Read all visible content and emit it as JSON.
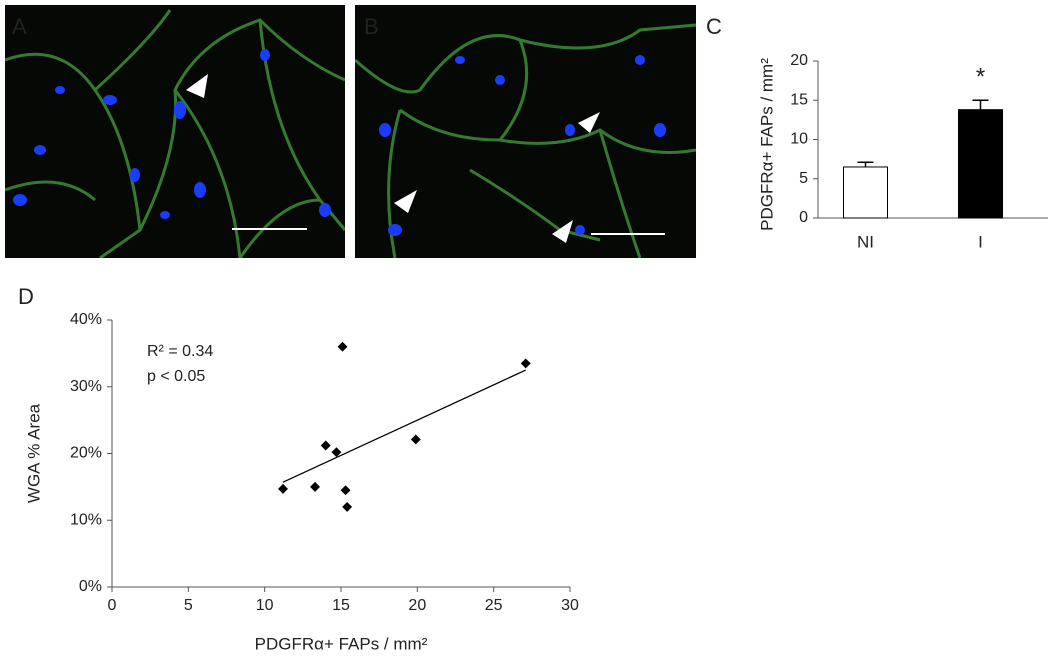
{
  "panel_labels": [
    "A",
    "B",
    "C",
    "D"
  ],
  "chart_data": [
    {
      "type": "bar",
      "y_label": "PDGFRα+ FAPs / mm²",
      "categories": [
        "NI",
        "I"
      ],
      "values": [
        6.5,
        13.8
      ],
      "errors": [
        0.6,
        1.2
      ],
      "colors": [
        "#ffffff",
        "#000000"
      ],
      "annotations": [
        "",
        "*"
      ],
      "ylim": [
        0,
        20
      ],
      "yticks": [
        0,
        5,
        10,
        15,
        20
      ]
    },
    {
      "type": "scatter",
      "x_label": "PDGFRα+ FAPs / mm²",
      "y_label": "WGA % Area",
      "x": [
        11.2,
        13.3,
        14.0,
        14.7,
        15.1,
        15.3,
        15.4,
        19.9,
        27.1
      ],
      "y": [
        14.7,
        15.0,
        21.2,
        20.2,
        36.0,
        14.5,
        12.0,
        22.1,
        33.5
      ],
      "color": "#000000",
      "trendline": {
        "x": [
          11.2,
          27.1
        ],
        "y": [
          15.7,
          32.5
        ]
      },
      "annotations": [
        "R² = 0.34",
        "p < 0.05"
      ],
      "xlim": [
        0,
        30
      ],
      "xticks": [
        0,
        5,
        10,
        15,
        20,
        25,
        30
      ],
      "ylim": [
        0,
        40
      ],
      "yticks": [
        {
          "value": 0,
          "label": "0%"
        },
        {
          "value": 10,
          "label": "10%"
        },
        {
          "value": 20,
          "label": "20%"
        },
        {
          "value": 30,
          "label": "30%"
        },
        {
          "value": 40,
          "label": "40%"
        }
      ]
    }
  ]
}
